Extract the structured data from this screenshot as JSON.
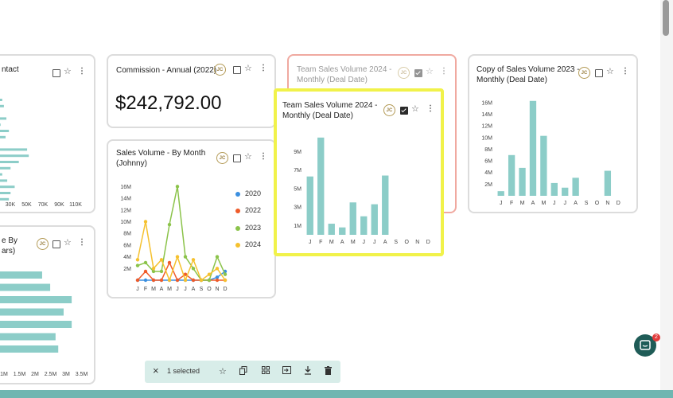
{
  "cards": {
    "contact": {
      "title": "ntact",
      "avatar": "",
      "x_ticks": [
        "30K",
        "50K",
        "70K",
        "90K",
        "110K"
      ],
      "chart_data": {
        "type": "bar",
        "orientation": "horizontal",
        "values": [
          20,
          22,
          14,
          25,
          18,
          28,
          24,
          16,
          50,
          52,
          40,
          30,
          20,
          26,
          35,
          30,
          28
        ],
        "xlim": [
          0,
          120
        ]
      }
    },
    "by_years": {
      "title_line1": "e By",
      "title_line2": "ars)",
      "avatar": "JC",
      "x_ticks": [
        "1M",
        "1.5M",
        "2M",
        "2.5M",
        "3M",
        "3.5M"
      ],
      "chart_data": {
        "type": "bar",
        "orientation": "horizontal",
        "values": [
          2.1,
          2.4,
          3.2,
          2.9,
          3.2,
          2.6,
          2.7
        ],
        "xlim": [
          0,
          3.7
        ]
      }
    },
    "commission": {
      "title": "Commission - Annual (2022)",
      "avatar": "JC",
      "value": "$242,792.00"
    },
    "sales_by_month": {
      "title_line1": "Sales Volume - By Month",
      "title_line2": "(Johnny)",
      "avatar": "JC",
      "chart_data": {
        "type": "line",
        "categories": [
          "J",
          "F",
          "M",
          "A",
          "M",
          "J",
          "J",
          "A",
          "S",
          "O",
          "N",
          "D"
        ],
        "y_ticks": [
          "2M",
          "4M",
          "6M",
          "8M",
          "10M",
          "12M",
          "14M",
          "16M"
        ],
        "ylim": [
          0,
          17
        ],
        "series": [
          {
            "name": "2020",
            "color": "#3b8fe0",
            "values": [
              0,
              0,
              0,
              0,
              0,
              0,
              0,
              0,
              0,
              0,
              0.5,
              1.5
            ]
          },
          {
            "name": "2022",
            "color": "#ef5b2a",
            "values": [
              0,
              1.5,
              0,
              0,
              3,
              0,
              1,
              0,
              0,
              0,
              0,
              0
            ]
          },
          {
            "name": "2023",
            "color": "#8bc34a",
            "values": [
              2.5,
              3,
              1.5,
              1.5,
              9.5,
              16,
              4,
              2,
              0,
              0,
              4,
              1
            ]
          },
          {
            "name": "2024",
            "color": "#f5c12e",
            "values": [
              3.5,
              10,
              2,
              3.5,
              0,
              4,
              0,
              3.5,
              0,
              1,
              2,
              0
            ]
          }
        ]
      }
    },
    "team_2024_ghost": {
      "title_line1": "Team Sales Volume 2024 -",
      "title_line2": "Monthly (Deal Date)",
      "avatar": "JC"
    },
    "team_2024": {
      "title_line1": "Team Sales Volume 2024 -",
      "title_line2": "Monthly (Deal Date)",
      "avatar": "JC",
      "chart_data": {
        "type": "bar",
        "categories": [
          "J",
          "F",
          "M",
          "A",
          "M",
          "J",
          "J",
          "A",
          "S",
          "O",
          "N",
          "D"
        ],
        "y_ticks": [
          "1M",
          "3M",
          "5M",
          "7M",
          "9M"
        ],
        "values": [
          6.3,
          10.5,
          1.2,
          0.8,
          3.5,
          2.0,
          3.3,
          6.4,
          0,
          0,
          0,
          0
        ],
        "ylim": [
          0,
          11
        ]
      }
    },
    "copy_2023": {
      "title_line1": "Copy of Sales Volume 2023 -",
      "title_line2": "Monthly (Deal Date)",
      "avatar": "JC",
      "chart_data": {
        "type": "bar",
        "categories": [
          "J",
          "F",
          "M",
          "A",
          "M",
          "J",
          "J",
          "A",
          "S",
          "O",
          "N",
          "D"
        ],
        "y_ticks": [
          "2M",
          "4M",
          "6M",
          "8M",
          "10M",
          "12M",
          "14M",
          "16M"
        ],
        "values": [
          0.8,
          7,
          4.8,
          16.3,
          10.3,
          2.2,
          1.4,
          3.1,
          0,
          0,
          4.3,
          0
        ],
        "ylim": [
          0,
          17.5
        ]
      }
    }
  },
  "toolbar": {
    "close_icon": "×",
    "selected_label": "1 selected"
  },
  "chat": {
    "badge": "2"
  }
}
